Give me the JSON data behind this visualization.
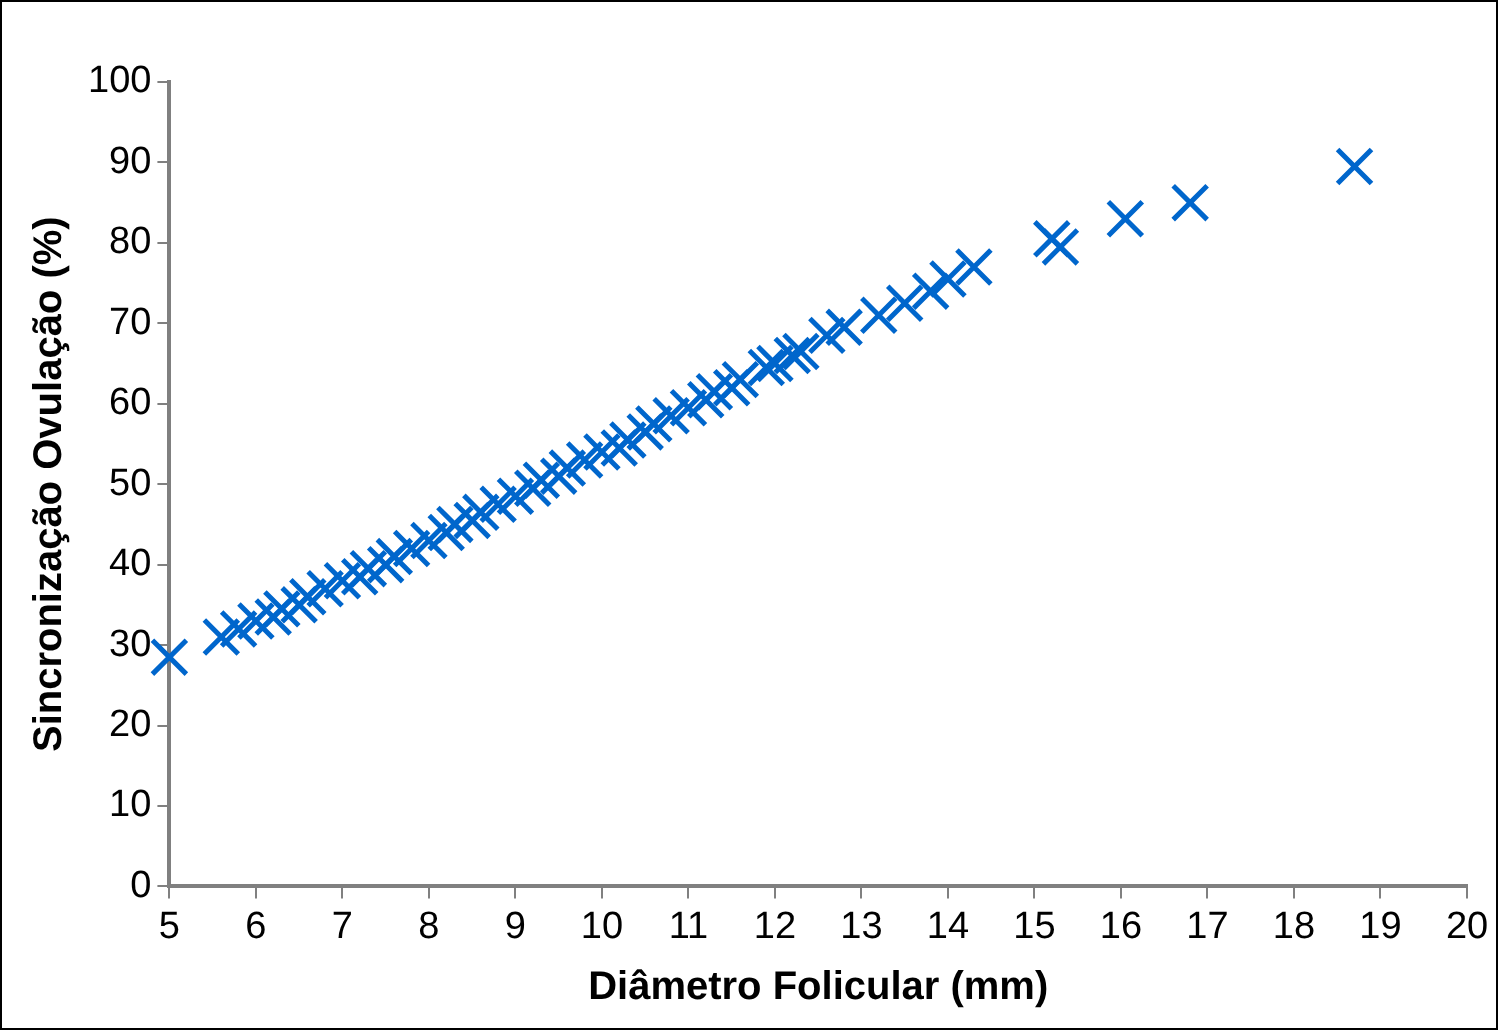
{
  "chart_data": {
    "type": "scatter",
    "xlabel": "Diâmetro Folicular (mm)",
    "ylabel": "Sincronização Ovulação (%)",
    "series": [
      {
        "color": "#0066cc",
        "x": [
          5,
          5.6,
          5.8,
          6,
          6.2,
          6.3,
          6.5,
          6.6,
          6.8,
          7,
          7.2,
          7.3,
          7.5,
          7.6,
          7.8,
          8,
          8.2,
          8.3,
          8.5,
          8.6,
          8.8,
          9,
          9.2,
          9.3,
          9.5,
          9.6,
          9.8,
          10,
          10.2,
          10.3,
          10.5,
          10.6,
          10.8,
          11,
          11.2,
          11.3,
          11.5,
          11.6,
          11.9,
          12,
          12.2,
          12.3,
          12.6,
          12.8,
          13.2,
          13.5,
          13.8,
          14,
          14.3,
          15.2,
          15.3,
          16.05,
          16.8,
          18.7
        ],
        "values": [
          28.5,
          31,
          32,
          33,
          33.5,
          34.5,
          35,
          36,
          37,
          38,
          38.5,
          39.5,
          40,
          41,
          42,
          43,
          44,
          45,
          45.5,
          46.5,
          47.5,
          48.5,
          49.5,
          50.5,
          51,
          52,
          53,
          54,
          54.5,
          55.5,
          56.5,
          57.5,
          58.5,
          59.5,
          60.5,
          61.5,
          62,
          63,
          64.5,
          65,
          66,
          66.5,
          68.5,
          69.5,
          71,
          72.5,
          74,
          75.5,
          77,
          80.5,
          79.5,
          83,
          85,
          89.5
        ]
      }
    ],
    "xlim": [
      5,
      20
    ],
    "xticks": [
      5,
      6,
      7,
      8,
      9,
      10,
      11,
      12,
      13,
      14,
      15,
      16,
      17,
      18,
      19,
      20
    ],
    "ylim": [
      0,
      100
    ],
    "yticks": [
      0,
      10,
      20,
      30,
      40,
      50,
      60,
      70,
      80,
      90,
      100
    ],
    "grid": false,
    "legend": false,
    "marker": "cross"
  }
}
